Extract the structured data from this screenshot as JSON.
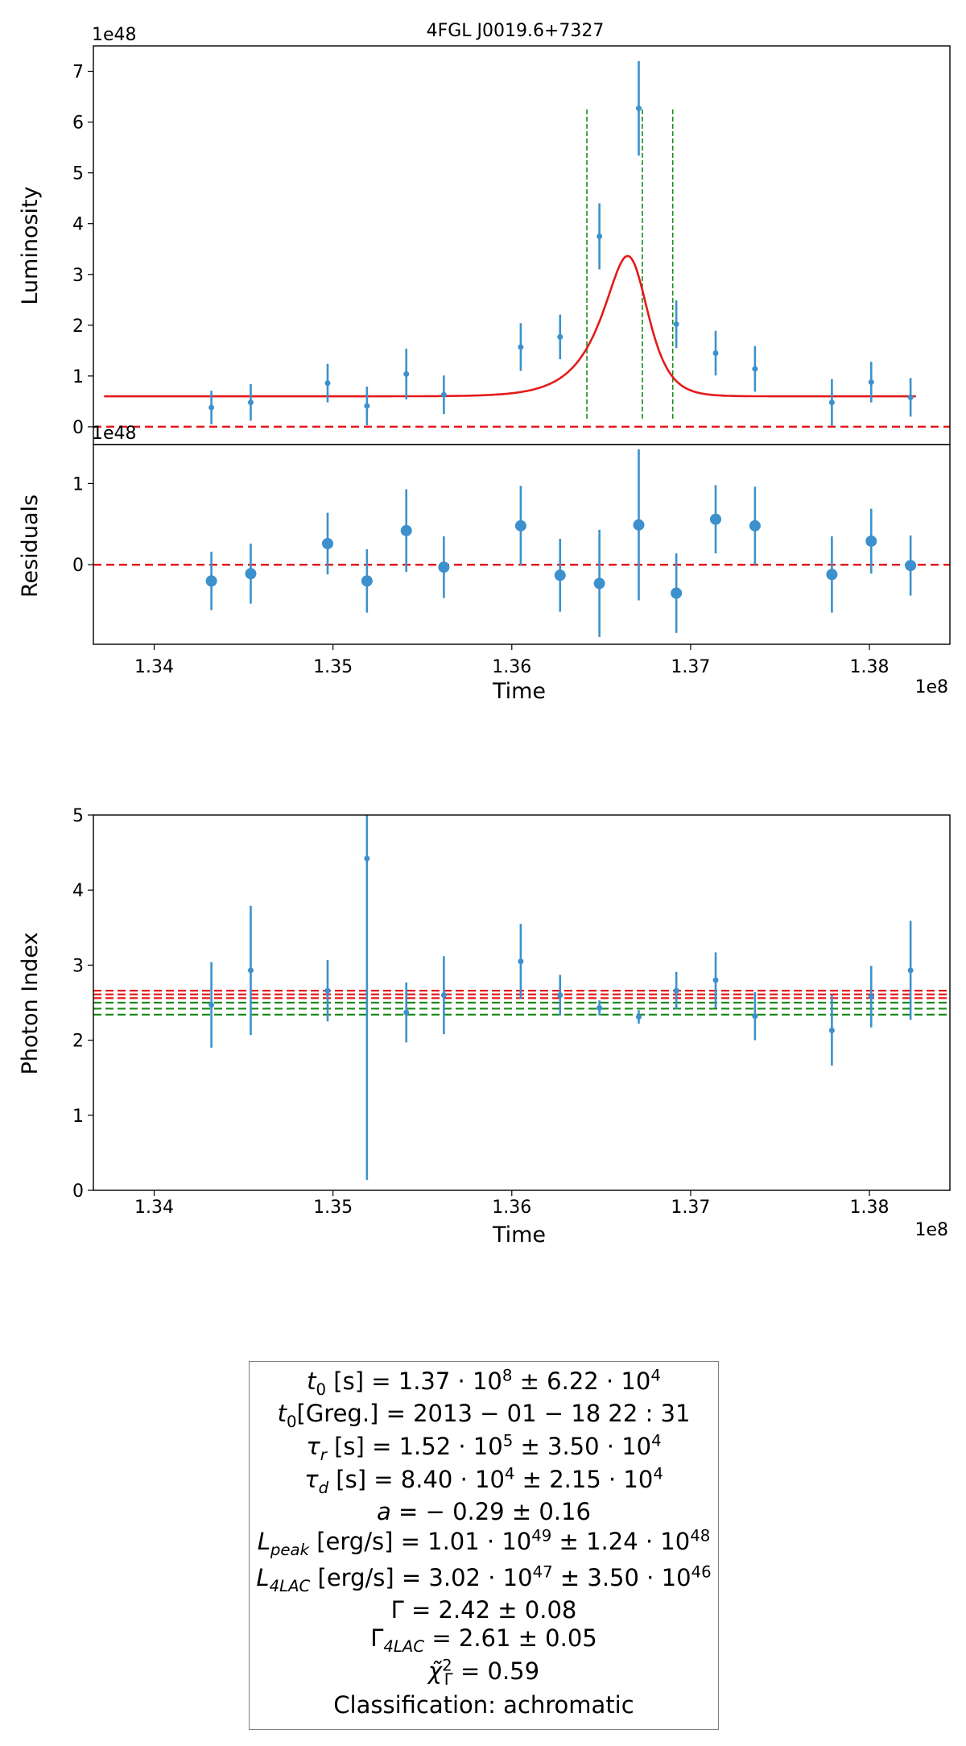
{
  "chart_data": [
    {
      "type": "scatter",
      "panel": "luminosity",
      "title": "4FGL J0019.6+7327",
      "xlabel": "",
      "ylabel": "Luminosity",
      "offset_label": "1e48",
      "y_scale": 1e+48,
      "xlim": [
        133660000.0,
        138450000.0
      ],
      "ylim": [
        -0.35,
        7.5
      ],
      "yticks": [
        0,
        1,
        2,
        3,
        4,
        5,
        6,
        7
      ],
      "grid": false,
      "points": [
        {
          "x": 134320000.0,
          "y": 0.38,
          "err": 0.33
        },
        {
          "x": 134540000.0,
          "y": 0.48,
          "err": 0.36
        },
        {
          "x": 134970000.0,
          "y": 0.86,
          "err": 0.38
        },
        {
          "x": 135190000.0,
          "y": 0.41,
          "err": 0.38
        },
        {
          "x": 135410000.0,
          "y": 1.04,
          "err": 0.5
        },
        {
          "x": 135620000.0,
          "y": 0.63,
          "err": 0.38
        },
        {
          "x": 136050000.0,
          "y": 1.57,
          "err": 0.47
        },
        {
          "x": 136270000.0,
          "y": 1.77,
          "err": 0.44
        },
        {
          "x": 136490000.0,
          "y": 3.75,
          "err": 0.65
        },
        {
          "x": 136710000.0,
          "y": 6.27,
          "err": 0.93
        },
        {
          "x": 136920000.0,
          "y": 2.02,
          "err": 0.47
        },
        {
          "x": 137140000.0,
          "y": 1.45,
          "err": 0.44
        },
        {
          "x": 137360000.0,
          "y": 1.14,
          "err": 0.45
        },
        {
          "x": 137790000.0,
          "y": 0.48,
          "err": 0.46
        },
        {
          "x": 138010000.0,
          "y": 0.88,
          "err": 0.4
        },
        {
          "x": 138230000.0,
          "y": 0.58,
          "err": 0.38
        }
      ],
      "model_curve": {
        "color": "#e41a1c",
        "baseline": 0.6,
        "t0": 136680000.0,
        "amplitude": 5.3,
        "tau_r": 152000.0,
        "tau_d": 84000.0
      },
      "vlines": [
        136420000.0,
        136730000.0,
        136900000.0
      ],
      "vline_ymax": 6.25,
      "hline": 0,
      "colors": {
        "points": "#3c91cc",
        "model": "#e41a1c",
        "zero_line": "#e41a1c",
        "vlines": "#1a8a1a"
      }
    },
    {
      "type": "scatter",
      "panel": "residuals",
      "xlabel": "Time",
      "ylabel": "Residuals",
      "offset_label": "1e48",
      "x_offset_label": "1e8",
      "xlim": [
        133660000.0,
        138450000.0
      ],
      "ylim": [
        -0.98,
        1.48
      ],
      "xticks": [
        134000000.0,
        135000000.0,
        136000000.0,
        137000000.0,
        138000000.0
      ],
      "xtick_labels": [
        "1.34",
        "1.35",
        "1.36",
        "1.37",
        "1.38"
      ],
      "yticks": [
        0,
        1
      ],
      "grid": false,
      "points": [
        {
          "x": 134320000.0,
          "y": -0.2,
          "err": 0.36
        },
        {
          "x": 134540000.0,
          "y": -0.11,
          "err": 0.37
        },
        {
          "x": 134970000.0,
          "y": 0.26,
          "err": 0.38
        },
        {
          "x": 135190000.0,
          "y": -0.2,
          "err": 0.39
        },
        {
          "x": 135410000.0,
          "y": 0.42,
          "err": 0.51
        },
        {
          "x": 135620000.0,
          "y": -0.03,
          "err": 0.38
        },
        {
          "x": 136050000.0,
          "y": 0.48,
          "err": 0.49
        },
        {
          "x": 136270000.0,
          "y": -0.13,
          "err": 0.45
        },
        {
          "x": 136490000.0,
          "y": -0.23,
          "err": 0.66
        },
        {
          "x": 136710000.0,
          "y": 0.49,
          "err": 0.93
        },
        {
          "x": 136920000.0,
          "y": -0.35,
          "err": 0.49
        },
        {
          "x": 137140000.0,
          "y": 0.56,
          "err": 0.42
        },
        {
          "x": 137360000.0,
          "y": 0.48,
          "err": 0.48
        },
        {
          "x": 137790000.0,
          "y": -0.12,
          "err": 0.47
        },
        {
          "x": 138010000.0,
          "y": 0.29,
          "err": 0.4
        },
        {
          "x": 138230000.0,
          "y": -0.01,
          "err": 0.37
        }
      ],
      "hline": 0
    },
    {
      "type": "scatter",
      "panel": "photon_index",
      "xlabel": "Time",
      "ylabel": "Photon Index",
      "x_offset_label": "1e8",
      "xlim": [
        133660000.0,
        138450000.0
      ],
      "ylim": [
        0,
        5
      ],
      "xticks": [
        134000000.0,
        135000000.0,
        136000000.0,
        137000000.0,
        138000000.0
      ],
      "xtick_labels": [
        "1.34",
        "1.35",
        "1.36",
        "1.37",
        "1.38"
      ],
      "yticks": [
        0,
        1,
        2,
        3,
        4,
        5
      ],
      "grid": false,
      "points": [
        {
          "x": 134320000.0,
          "y": 2.47,
          "err": 0.57
        },
        {
          "x": 134540000.0,
          "y": 2.93,
          "err": 0.86
        },
        {
          "x": 134970000.0,
          "y": 2.66,
          "err": 0.41
        },
        {
          "x": 135190000.0,
          "y": 4.42,
          "err": 4.28
        },
        {
          "x": 135410000.0,
          "y": 2.37,
          "err": 0.4
        },
        {
          "x": 135620000.0,
          "y": 2.6,
          "err": 0.52
        },
        {
          "x": 136050000.0,
          "y": 3.05,
          "err": 0.5
        },
        {
          "x": 136270000.0,
          "y": 2.6,
          "err": 0.27
        },
        {
          "x": 136490000.0,
          "y": 2.43,
          "err": 0.1
        },
        {
          "x": 136710000.0,
          "y": 2.31,
          "err": 0.09
        },
        {
          "x": 136920000.0,
          "y": 2.66,
          "err": 0.25
        },
        {
          "x": 137140000.0,
          "y": 2.8,
          "err": 0.37
        },
        {
          "x": 137360000.0,
          "y": 2.32,
          "err": 0.32
        },
        {
          "x": 137790000.0,
          "y": 2.13,
          "err": 0.47
        },
        {
          "x": 138010000.0,
          "y": 2.58,
          "err": 0.41
        },
        {
          "x": 138230000.0,
          "y": 2.93,
          "err": 0.66
        }
      ],
      "hlines_red": [
        2.56,
        2.61,
        2.66
      ],
      "hlines_green": [
        2.34,
        2.42,
        2.5
      ]
    }
  ],
  "params_box": {
    "t0_label": "t",
    "t0_sub": "0",
    "t0_value": " [s] = 1.37 · 10",
    "t0_exp": "8",
    "t0_err": " ± 6.22 · 10",
    "t0_err_exp": "4",
    "greg_label": "t",
    "greg_sub": "0",
    "greg_value": "[Greg.] = 2013 − 01 − 18 22 : 31",
    "tau_r_label": "τ",
    "tau_r_sub": "r",
    "tau_r_value": " [s] = 1.52 · 10",
    "tau_r_exp": "5",
    "tau_r_err": " ± 3.50 · 10",
    "tau_r_err_exp": "4",
    "tau_d_label": "τ",
    "tau_d_sub": "d",
    "tau_d_value": " [s] = 8.40 · 10",
    "tau_d_exp": "4",
    "tau_d_err": " ± 2.15 · 10",
    "tau_d_err_exp": "4",
    "a_label": "a",
    "a_value": " = − 0.29 ±  0.16",
    "lpeak_label": "L",
    "lpeak_sub": "peak",
    "lpeak_value": " [erg/s] = 1.01 · 10",
    "lpeak_exp": "49",
    "lpeak_err": " ± 1.24 · 10",
    "lpeak_err_exp": "48",
    "l4lac_label": "L",
    "l4lac_sub": "4LAC",
    "l4lac_value": " [erg/s] = 3.02 · 10",
    "l4lac_exp": "47",
    "l4lac_err": " ± 3.50 · 10",
    "l4lac_err_exp": "46",
    "gamma_text": "Γ = 2.42 ± 0.08",
    "gamma4lac_label": "Γ",
    "gamma4lac_sub": "4LAC",
    "gamma4lac_value": " = 2.61 ± 0.05",
    "chi_label": "χ̃",
    "chi_sup": "2",
    "chi_sub": "Γ",
    "chi_value": " = 0.59",
    "classification": "Classification: achromatic"
  }
}
